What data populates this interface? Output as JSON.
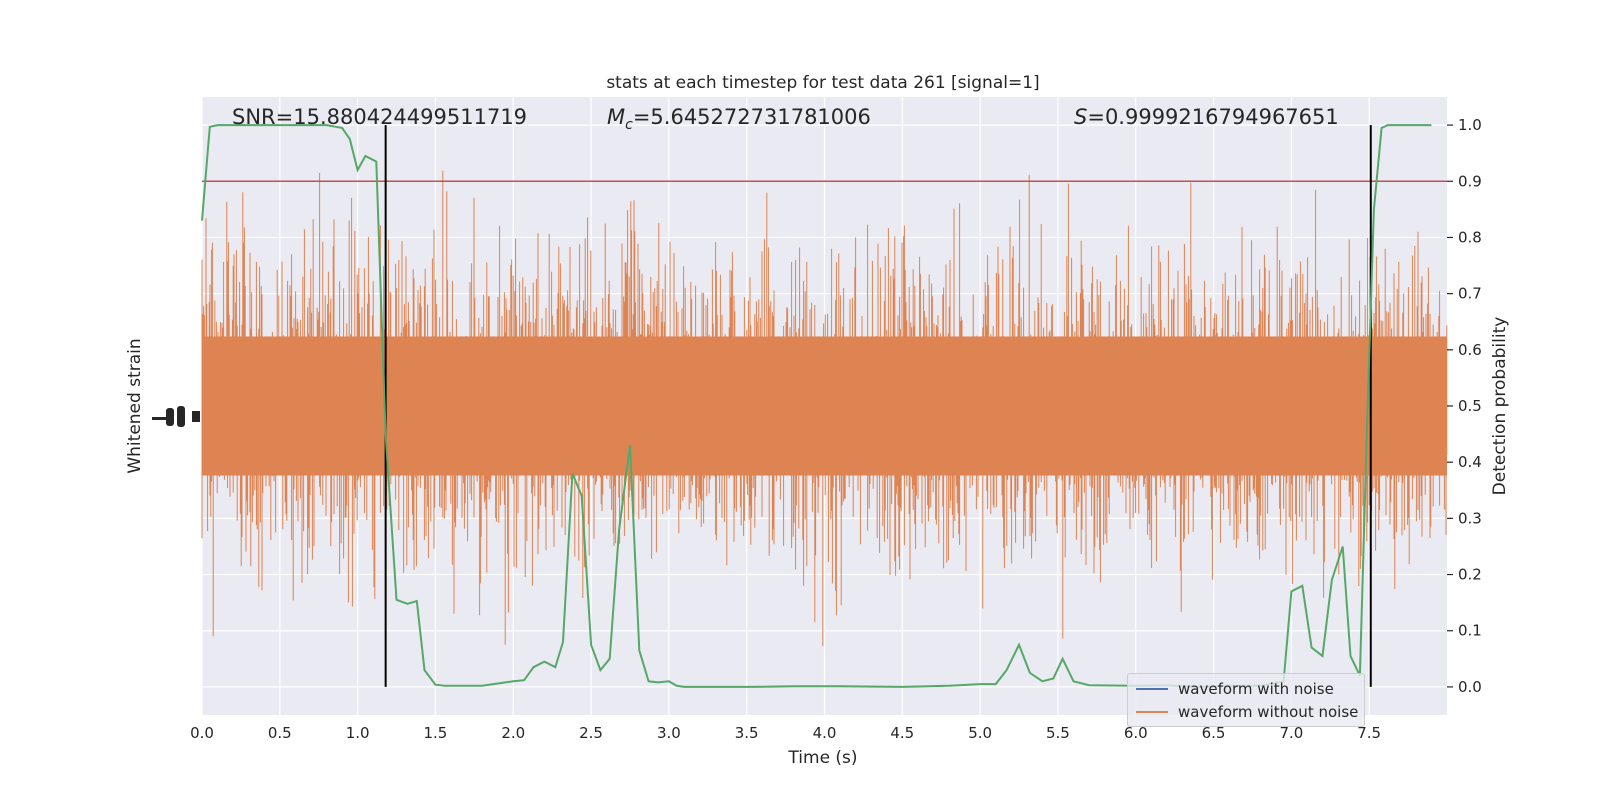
{
  "chart_data": {
    "type": "line",
    "title": "stats at each timestep for test data 261 [signal=1]",
    "xlabel": "Time (s)",
    "ylabel_left": "Whitened strain",
    "ylabel_right": "Detection probability",
    "xlim": [
      0.0,
      8.0
    ],
    "ylim_right": [
      -0.05,
      1.05
    ],
    "x_ticks": [
      "0.0",
      "0.5",
      "1.0",
      "1.5",
      "2.0",
      "2.5",
      "3.0",
      "3.5",
      "4.0",
      "4.5",
      "5.0",
      "5.5",
      "6.0",
      "6.5",
      "7.0",
      "7.5"
    ],
    "right_ticks": [
      "0.0",
      "0.1",
      "0.2",
      "0.3",
      "0.4",
      "0.5",
      "0.6",
      "0.7",
      "0.8",
      "0.9",
      "1.0"
    ],
    "annotations": {
      "snr": "SNR=15.880424499511719",
      "mc_symbol": "M",
      "mc_sub": "c",
      "mc_value": "=5.645272731781006",
      "s_symbol": "S",
      "s_value": "=0.9999216794967651"
    },
    "threshold": 0.9,
    "signal_bounds": [
      1.18,
      7.51
    ],
    "series": [
      {
        "name": "waveform with noise",
        "color": "#4c72b0"
      },
      {
        "name": "waveform without noise",
        "color": "#dd8452"
      },
      {
        "color": "#55a868",
        "x": [
          0.0,
          0.05,
          0.1,
          0.2,
          0.3,
          0.4,
          0.5,
          0.6,
          0.7,
          0.8,
          0.9,
          0.95,
          1.0,
          1.05,
          1.12,
          1.18,
          1.25,
          1.32,
          1.38,
          1.43,
          1.5,
          1.56,
          1.65,
          1.8,
          1.95,
          2.0,
          2.07,
          2.13,
          2.2,
          2.27,
          2.32,
          2.38,
          2.44,
          2.5,
          2.56,
          2.62,
          2.68,
          2.75,
          2.81,
          2.87,
          2.93,
          3.0,
          3.05,
          3.1,
          3.2,
          3.5,
          3.8,
          4.1,
          4.5,
          4.8,
          5.0,
          5.1,
          5.17,
          5.25,
          5.32,
          5.4,
          5.47,
          5.53,
          5.6,
          5.7,
          6.0,
          6.2,
          6.4,
          6.6,
          6.8,
          6.95,
          7.0,
          7.07,
          7.13,
          7.2,
          7.26,
          7.33,
          7.38,
          7.44,
          7.49,
          7.53,
          7.58,
          7.62,
          7.67,
          7.75,
          7.9
        ],
        "y": [
          0.83,
          0.997,
          1.0,
          1.0,
          1.0,
          1.0,
          1.0,
          1.0,
          1.0,
          1.0,
          0.995,
          0.975,
          0.92,
          0.945,
          0.935,
          0.45,
          0.155,
          0.148,
          0.153,
          0.03,
          0.004,
          0.002,
          0.002,
          0.002,
          0.008,
          0.01,
          0.012,
          0.035,
          0.045,
          0.035,
          0.08,
          0.38,
          0.34,
          0.075,
          0.03,
          0.05,
          0.28,
          0.43,
          0.065,
          0.01,
          0.008,
          0.01,
          0.002,
          0.0,
          0.0,
          0.0,
          0.001,
          0.001,
          0.0,
          0.002,
          0.005,
          0.005,
          0.03,
          0.075,
          0.025,
          0.01,
          0.015,
          0.05,
          0.01,
          0.003,
          0.002,
          0.003,
          0.0,
          0.002,
          0.002,
          0.01,
          0.17,
          0.18,
          0.07,
          0.055,
          0.19,
          0.25,
          0.055,
          0.02,
          0.5,
          0.85,
          0.995,
          1.0,
          1.0,
          1.0,
          1.0
        ]
      }
    ],
    "noise_amplitude_fraction": 0.45,
    "grid": true
  }
}
